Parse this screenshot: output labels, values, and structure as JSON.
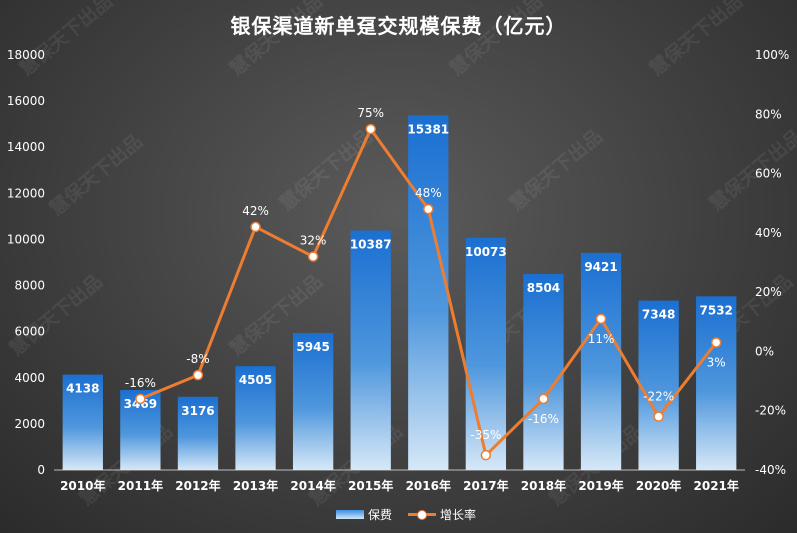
{
  "watermark_text": "慧保天下出品",
  "chart_data": {
    "type": "bar",
    "title": "银保渠道新单趸交规模保费（亿元）",
    "categories": [
      "2010年",
      "2011年",
      "2012年",
      "2013年",
      "2014年",
      "2015年",
      "2016年",
      "2017年",
      "2018年",
      "2019年",
      "2020年",
      "2021年"
    ],
    "series": [
      {
        "name": "保费",
        "type": "bar",
        "axis": "left",
        "values": [
          4138,
          3469,
          3176,
          4505,
          5945,
          10387,
          15381,
          10073,
          8504,
          9421,
          7348,
          7532
        ],
        "labels": [
          "4138",
          "3469",
          "3176",
          "4505",
          "5945",
          "10387",
          "15381",
          "10073",
          "8504",
          "9421",
          "7348",
          "7532"
        ]
      },
      {
        "name": "增长率",
        "type": "line",
        "axis": "right",
        "values": [
          null,
          -16,
          -8,
          42,
          32,
          75,
          48,
          -35,
          -16,
          11,
          -22,
          3
        ],
        "labels": [
          "",
          "-16%",
          "-8%",
          "42%",
          "32%",
          "75%",
          "48%",
          "-35%",
          "-16%",
          "11%",
          "-22%",
          "3%"
        ]
      }
    ],
    "y_left": {
      "min": 0,
      "max": 18000,
      "ticks": [
        "0",
        "2000",
        "4000",
        "6000",
        "8000",
        "10000",
        "12000",
        "14000",
        "16000",
        "18000"
      ]
    },
    "y_right": {
      "min": -40,
      "max": 100,
      "ticks": [
        "-40%",
        "-20%",
        "0%",
        "20%",
        "40%",
        "60%",
        "80%",
        "100%"
      ]
    },
    "legend": "bottom-center",
    "grid": false,
    "colors": {
      "bar_top": "#1a6fd1",
      "bar_bottom": "#d6e8f7",
      "line": "#ed7d31",
      "marker_fill": "#ffffff",
      "text": "#ffffff",
      "background": "#444444"
    }
  }
}
